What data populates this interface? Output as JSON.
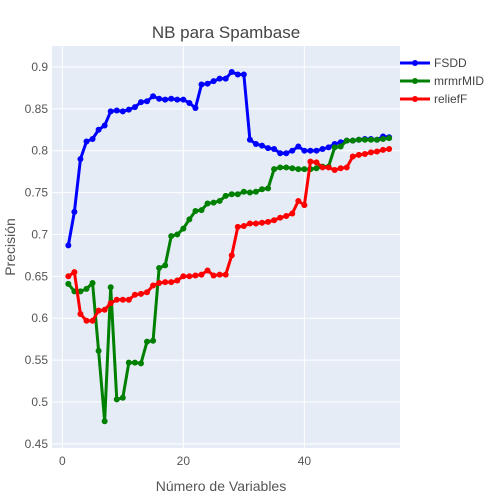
{
  "chart_data": {
    "type": "line",
    "title": "NB para Spambase",
    "xlabel": "Número de Variables",
    "ylabel": "Precisión",
    "xlim": [
      -1.7,
      55.8
    ],
    "ylim": [
      0.445,
      0.925
    ],
    "x_ticks": [
      0,
      20,
      40
    ],
    "y_ticks": [
      0.45,
      0.5,
      0.55,
      0.6,
      0.65,
      0.7,
      0.75,
      0.8,
      0.85,
      0.9
    ],
    "y_tick_labels": [
      "0.45",
      "0.5",
      "0.55",
      "0.6",
      "0.65",
      "0.7",
      "0.75",
      "0.8",
      "0.85",
      "0.9"
    ],
    "grid": true,
    "legend_position": "top-right",
    "series": [
      {
        "name": "FSDD",
        "color": "#0000ff",
        "x": [
          1,
          2,
          3,
          4,
          5,
          6,
          7,
          8,
          9,
          10,
          11,
          12,
          13,
          14,
          15,
          16,
          17,
          18,
          19,
          20,
          21,
          22,
          23,
          24,
          25,
          26,
          27,
          28,
          29,
          30,
          31,
          32,
          33,
          34,
          35,
          36,
          37,
          38,
          39,
          40,
          41,
          42,
          43,
          44,
          45,
          46,
          47,
          48,
          49,
          50,
          51,
          52,
          53,
          54
        ],
        "y": [
          0.687,
          0.727,
          0.79,
          0.811,
          0.814,
          0.825,
          0.83,
          0.847,
          0.848,
          0.847,
          0.849,
          0.852,
          0.858,
          0.859,
          0.865,
          0.862,
          0.861,
          0.862,
          0.861,
          0.861,
          0.857,
          0.851,
          0.879,
          0.88,
          0.883,
          0.886,
          0.886,
          0.894,
          0.891,
          0.891,
          0.813,
          0.808,
          0.806,
          0.803,
          0.802,
          0.797,
          0.797,
          0.8,
          0.805,
          0.8,
          0.8,
          0.8,
          0.802,
          0.804,
          0.808,
          0.81,
          0.812,
          0.812,
          0.813,
          0.814,
          0.814,
          0.813,
          0.817,
          0.816
        ]
      },
      {
        "name": "mrmrMID",
        "color": "#008000",
        "x": [
          1,
          2,
          3,
          4,
          5,
          6,
          7,
          8,
          9,
          10,
          11,
          12,
          13,
          14,
          15,
          16,
          17,
          18,
          19,
          20,
          21,
          22,
          23,
          24,
          25,
          26,
          27,
          28,
          29,
          30,
          31,
          32,
          33,
          34,
          35,
          36,
          37,
          38,
          39,
          40,
          41,
          42,
          43,
          44,
          45,
          46,
          47,
          48,
          49,
          50,
          51,
          52,
          53,
          54
        ],
        "y": [
          0.641,
          0.632,
          0.632,
          0.635,
          0.642,
          0.561,
          0.477,
          0.637,
          0.503,
          0.505,
          0.547,
          0.547,
          0.546,
          0.572,
          0.573,
          0.66,
          0.663,
          0.698,
          0.7,
          0.707,
          0.718,
          0.728,
          0.729,
          0.737,
          0.738,
          0.74,
          0.746,
          0.748,
          0.748,
          0.751,
          0.75,
          0.751,
          0.754,
          0.755,
          0.778,
          0.78,
          0.78,
          0.779,
          0.778,
          0.778,
          0.778,
          0.779,
          0.781,
          0.781,
          0.804,
          0.805,
          0.812,
          0.812,
          0.813,
          0.813,
          0.813,
          0.813,
          0.814,
          0.815
        ]
      },
      {
        "name": "reliefF",
        "color": "#ff0000",
        "x": [
          1,
          2,
          3,
          4,
          5,
          6,
          7,
          8,
          9,
          10,
          11,
          12,
          13,
          14,
          15,
          16,
          17,
          18,
          19,
          20,
          21,
          22,
          23,
          24,
          25,
          26,
          27,
          28,
          29,
          30,
          31,
          32,
          33,
          34,
          35,
          36,
          37,
          38,
          39,
          40,
          41,
          42,
          43,
          44,
          45,
          46,
          47,
          48,
          49,
          50,
          51,
          52,
          53,
          54
        ],
        "y": [
          0.65,
          0.655,
          0.605,
          0.597,
          0.597,
          0.609,
          0.61,
          0.618,
          0.622,
          0.622,
          0.622,
          0.628,
          0.629,
          0.631,
          0.639,
          0.642,
          0.643,
          0.643,
          0.645,
          0.65,
          0.65,
          0.651,
          0.652,
          0.657,
          0.651,
          0.652,
          0.652,
          0.675,
          0.709,
          0.71,
          0.713,
          0.713,
          0.714,
          0.715,
          0.717,
          0.72,
          0.722,
          0.725,
          0.74,
          0.735,
          0.787,
          0.786,
          0.78,
          0.78,
          0.777,
          0.779,
          0.78,
          0.793,
          0.795,
          0.796,
          0.798,
          0.799,
          0.801,
          0.802
        ]
      }
    ]
  }
}
